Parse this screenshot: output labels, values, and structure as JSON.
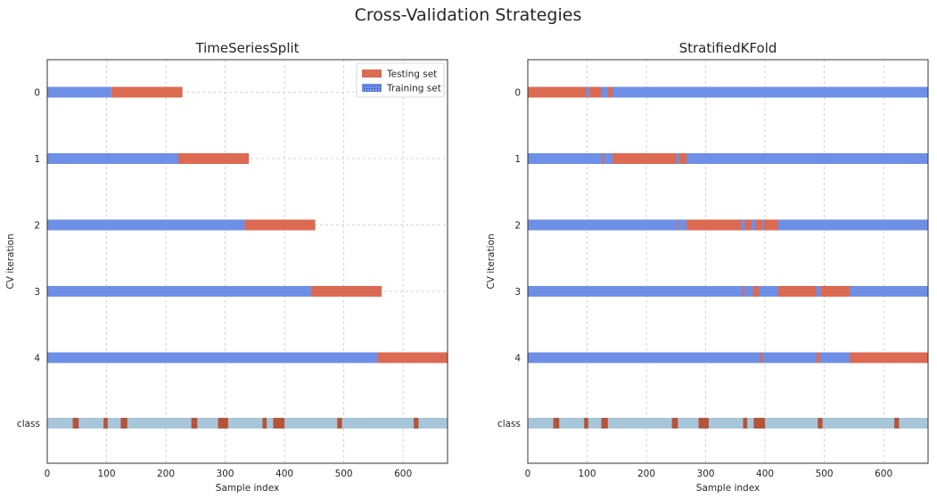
{
  "figure": {
    "title": "Cross-Validation Strategies"
  },
  "colors": {
    "training": "#6e8fe6",
    "testing": "#dc6a52",
    "class_a": "#a7c6d9",
    "class_b": "#b5543a",
    "grid": "#c8c8c8",
    "frame": "#333333"
  },
  "chart_data": [
    {
      "type": "bar",
      "title": "TimeSeriesSplit",
      "xlabel": "Sample index",
      "ylabel": "CV iteration",
      "xlim": [
        0,
        675
      ],
      "xticks": [
        0,
        100,
        200,
        300,
        400,
        500,
        600
      ],
      "yticklabels": [
        "0",
        "1",
        "2",
        "3",
        "4",
        "class"
      ],
      "grid": true,
      "legend": {
        "placement": "top-right",
        "entries": [
          "Testing set",
          "Training set"
        ]
      },
      "rows": [
        {
          "label": "0",
          "segments": [
            {
              "set": "training",
              "start": 0,
              "end": 108
            },
            {
              "set": "testing",
              "start": 108,
              "end": 228
            }
          ]
        },
        {
          "label": "1",
          "segments": [
            {
              "set": "training",
              "start": 0,
              "end": 221
            },
            {
              "set": "testing",
              "start": 221,
              "end": 340
            }
          ]
        },
        {
          "label": "2",
          "segments": [
            {
              "set": "training",
              "start": 0,
              "end": 333
            },
            {
              "set": "testing",
              "start": 333,
              "end": 452
            }
          ]
        },
        {
          "label": "3",
          "segments": [
            {
              "set": "training",
              "start": 0,
              "end": 445
            },
            {
              "set": "testing",
              "start": 445,
              "end": 564
            }
          ]
        },
        {
          "label": "4",
          "segments": [
            {
              "set": "training",
              "start": 0,
              "end": 557
            },
            {
              "set": "testing",
              "start": 557,
              "end": 675
            }
          ]
        }
      ],
      "class_row": {
        "label": "class",
        "range": [
          0,
          675
        ],
        "minority_ranges": [
          [
            43,
            53
          ],
          [
            95,
            102
          ],
          [
            124,
            135
          ],
          [
            243,
            253
          ],
          [
            288,
            305
          ],
          [
            363,
            370
          ],
          [
            381,
            400
          ],
          [
            489,
            497
          ],
          [
            618,
            626
          ]
        ]
      }
    },
    {
      "type": "bar",
      "title": "StratifiedKFold",
      "xlabel": "Sample index",
      "ylabel": "CV iteration",
      "xlim": [
        0,
        675
      ],
      "xticks": [
        0,
        100,
        200,
        300,
        400,
        500,
        600
      ],
      "yticklabels": [
        "0",
        "1",
        "2",
        "3",
        "4",
        "class"
      ],
      "grid": true,
      "rows": [
        {
          "label": "0",
          "segments": [
            {
              "set": "training",
              "start": 0,
              "end": 675
            },
            {
              "set": "testing",
              "start": 0,
              "end": 98
            },
            {
              "set": "testing",
              "start": 103,
              "end": 124
            },
            {
              "set": "testing",
              "start": 135,
              "end": 143
            }
          ]
        },
        {
          "label": "1",
          "segments": [
            {
              "set": "training",
              "start": 0,
              "end": 675
            },
            {
              "set": "testing",
              "start": 125,
              "end": 128
            },
            {
              "set": "testing",
              "start": 143,
              "end": 250
            },
            {
              "set": "testing",
              "start": 255,
              "end": 268
            }
          ]
        },
        {
          "label": "2",
          "segments": [
            {
              "set": "training",
              "start": 0,
              "end": 675
            },
            {
              "set": "testing",
              "start": 253,
              "end": 255
            },
            {
              "set": "testing",
              "start": 268,
              "end": 360
            },
            {
              "set": "testing",
              "start": 366,
              "end": 377
            },
            {
              "set": "testing",
              "start": 384,
              "end": 395
            },
            {
              "set": "testing",
              "start": 398,
              "end": 422
            }
          ]
        },
        {
          "label": "3",
          "segments": [
            {
              "set": "training",
              "start": 0,
              "end": 675
            },
            {
              "set": "testing",
              "start": 362,
              "end": 365
            },
            {
              "set": "testing",
              "start": 380,
              "end": 390
            },
            {
              "set": "testing",
              "start": 422,
              "end": 486
            },
            {
              "set": "testing",
              "start": 494,
              "end": 543
            }
          ]
        },
        {
          "label": "4",
          "segments": [
            {
              "set": "training",
              "start": 0,
              "end": 675
            },
            {
              "set": "testing",
              "start": 392,
              "end": 396
            },
            {
              "set": "testing",
              "start": 487,
              "end": 493
            },
            {
              "set": "testing",
              "start": 543,
              "end": 675
            }
          ]
        }
      ],
      "class_row": {
        "label": "class",
        "range": [
          0,
          675
        ],
        "minority_ranges": [
          [
            43,
            53
          ],
          [
            95,
            102
          ],
          [
            124,
            135
          ],
          [
            243,
            253
          ],
          [
            288,
            305
          ],
          [
            363,
            370
          ],
          [
            381,
            400
          ],
          [
            489,
            497
          ],
          [
            618,
            626
          ]
        ]
      }
    }
  ]
}
